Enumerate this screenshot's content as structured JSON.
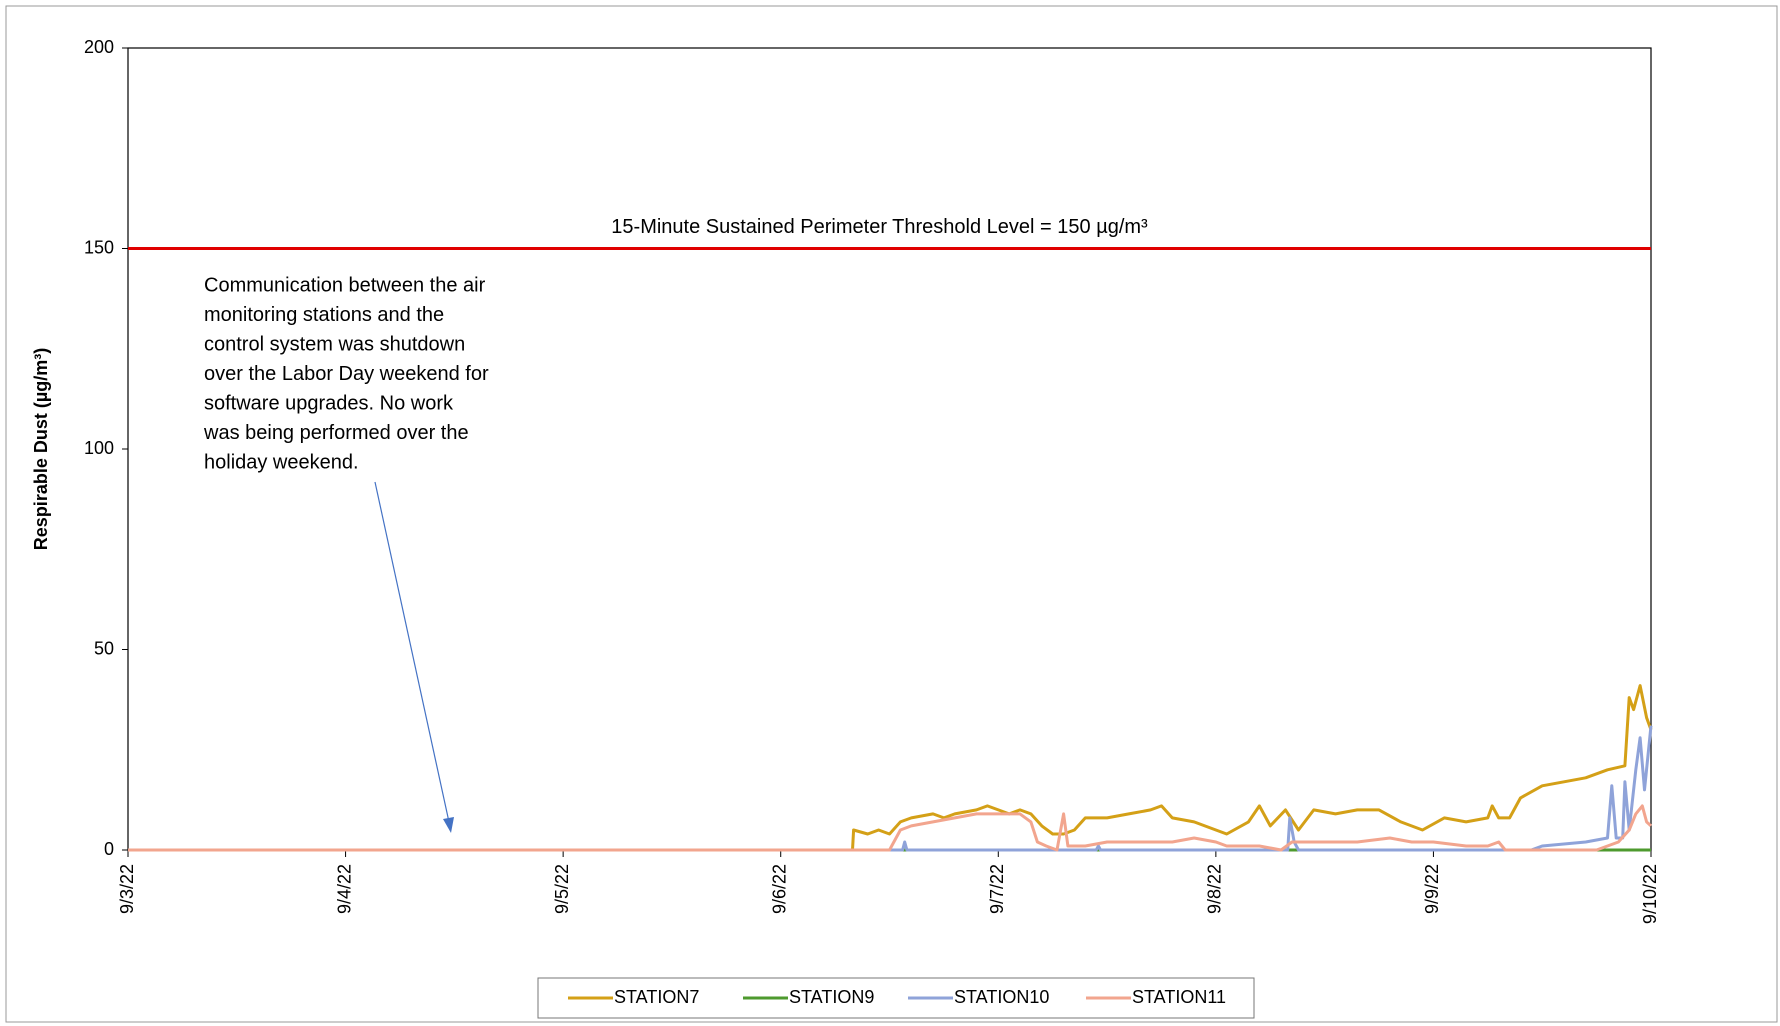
{
  "chart_data": {
    "type": "line",
    "ylabel": "Respirable Dust (µg/m³)",
    "xlim": [
      0,
      7
    ],
    "xticks": [
      {
        "value": 0,
        "label": "9/3/22"
      },
      {
        "value": 1,
        "label": "9/4/22"
      },
      {
        "value": 2,
        "label": "9/5/22"
      },
      {
        "value": 3,
        "label": "9/6/22"
      },
      {
        "value": 4,
        "label": "9/7/22"
      },
      {
        "value": 5,
        "label": "9/8/22"
      },
      {
        "value": 6,
        "label": "9/9/22"
      },
      {
        "value": 7,
        "label": "9/10/22"
      }
    ],
    "ylim": [
      0,
      200
    ],
    "yticks": [
      0,
      50,
      100,
      150,
      200
    ],
    "grid": false,
    "legend": "bottom",
    "threshold": {
      "value": 150,
      "label": "15-Minute Sustained Perimeter Threshold Level = 150 µg/m³",
      "color": "#e00000"
    },
    "annotation": [
      "Communication between the air",
      "monitoring stations and the",
      "control system was shutdown",
      "over the Labor Day weekend for",
      "software upgrades. No work",
      "was being performed over the",
      "holiday weekend."
    ],
    "series": [
      {
        "name": "STATION7",
        "color": "#d4a017",
        "x": [
          0,
          3.33,
          3.335,
          3.4,
          3.45,
          3.5,
          3.55,
          3.6,
          3.7,
          3.75,
          3.8,
          3.9,
          3.95,
          4.0,
          4.05,
          4.1,
          4.15,
          4.2,
          4.25,
          4.3,
          4.35,
          4.4,
          4.5,
          4.6,
          4.7,
          4.75,
          4.8,
          4.9,
          5.0,
          5.05,
          5.15,
          5.2,
          5.25,
          5.32,
          5.38,
          5.45,
          5.55,
          5.65,
          5.75,
          5.85,
          5.95,
          6.05,
          6.15,
          6.25,
          6.27,
          6.3,
          6.35,
          6.4,
          6.5,
          6.6,
          6.7,
          6.8,
          6.88,
          6.9,
          6.92,
          6.95,
          6.98,
          7.0
        ],
        "values": [
          0,
          0,
          5,
          4,
          5,
          4,
          7,
          8,
          9,
          8,
          9,
          10,
          11,
          10,
          9,
          10,
          9,
          6,
          4,
          4,
          5,
          8,
          8,
          9,
          10,
          11,
          8,
          7,
          5,
          4,
          7,
          11,
          6,
          10,
          5,
          10,
          9,
          10,
          10,
          7,
          5,
          8,
          7,
          8,
          11,
          8,
          8,
          13,
          16,
          17,
          18,
          20,
          21,
          38,
          35,
          41,
          33,
          30
        ]
      },
      {
        "name": "STATION9",
        "color": "#4e9a2e",
        "x": [
          0,
          7
        ],
        "values": [
          0,
          0
        ]
      },
      {
        "name": "STATION10",
        "color": "#8fa3d9",
        "x": [
          0,
          3.56,
          3.57,
          3.58,
          4.45,
          4.46,
          4.47,
          5.33,
          5.34,
          5.36,
          5.38,
          6.45,
          6.5,
          6.7,
          6.8,
          6.82,
          6.84,
          6.87,
          6.88,
          6.9,
          6.93,
          6.95,
          6.97,
          7.0
        ],
        "values": [
          0,
          0,
          2,
          0,
          0,
          1,
          0,
          0,
          8,
          2,
          0,
          0,
          1,
          2,
          3,
          16,
          3,
          3,
          17,
          5,
          20,
          28,
          15,
          31
        ]
      },
      {
        "name": "STATION11",
        "color": "#f2a58e",
        "x": [
          0,
          3.5,
          3.55,
          3.6,
          3.7,
          3.8,
          3.9,
          4.0,
          4.1,
          4.15,
          4.18,
          4.22,
          4.27,
          4.3,
          4.32,
          4.4,
          4.5,
          4.6,
          4.7,
          4.8,
          4.9,
          5.0,
          5.05,
          5.2,
          5.3,
          5.35,
          5.5,
          5.65,
          5.8,
          5.9,
          6.0,
          6.15,
          6.25,
          6.3,
          6.33,
          6.75,
          6.8,
          6.85,
          6.9,
          6.93,
          6.96,
          6.98,
          7.0
        ],
        "values": [
          0,
          0,
          5,
          6,
          7,
          8,
          9,
          9,
          9,
          7,
          2,
          1,
          0,
          9,
          1,
          1,
          2,
          2,
          2,
          2,
          3,
          2,
          1,
          1,
          0,
          2,
          2,
          2,
          3,
          2,
          2,
          1,
          1,
          2,
          0,
          0,
          1,
          2,
          5,
          9,
          11,
          7,
          6
        ]
      }
    ]
  }
}
